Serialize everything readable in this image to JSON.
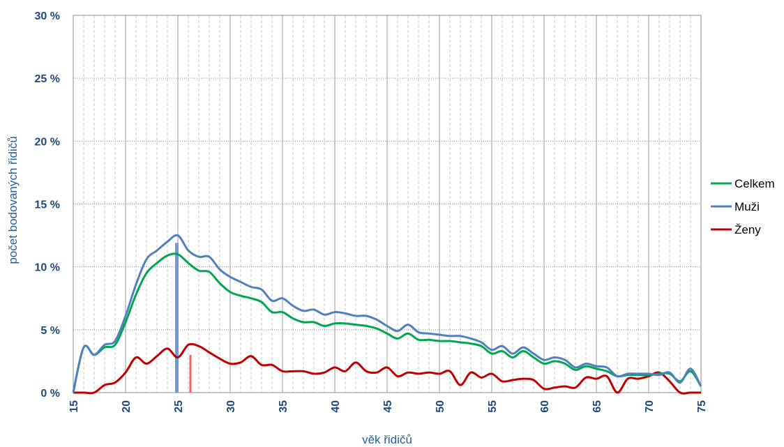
{
  "chart_data": {
    "type": "line",
    "xlabel": "věk řidičů",
    "ylabel": "počet bodovaných řidičů",
    "xlim": [
      15,
      75
    ],
    "ylim": [
      0,
      30
    ],
    "x_ticks": [
      "15",
      "20",
      "25",
      "30",
      "35",
      "40",
      "45",
      "50",
      "55",
      "60",
      "65",
      "70",
      "75"
    ],
    "y_ticks": [
      "0 %",
      "5 %",
      "10 %",
      "15 %",
      "20 %",
      "25 %",
      "30 %"
    ],
    "y_unit": "%",
    "grid": "vertical major solid, minor dashed; horizontal dotted",
    "legend_position": "right",
    "colors": {
      "Celkem": "#00a650",
      "Muži": "#4f81bd",
      "Ženy": "#c00000",
      "grid": "#a6a6a6",
      "axis_text": "#1f497d"
    },
    "x": [
      15,
      16,
      17,
      18,
      19,
      20,
      21,
      22,
      23,
      24,
      25,
      26,
      27,
      28,
      29,
      30,
      31,
      32,
      33,
      34,
      35,
      36,
      37,
      38,
      39,
      40,
      41,
      42,
      43,
      44,
      45,
      46,
      47,
      48,
      49,
      50,
      51,
      52,
      53,
      54,
      55,
      56,
      57,
      58,
      59,
      60,
      61,
      62,
      63,
      64,
      65,
      66,
      67,
      68,
      69,
      70,
      71,
      72,
      73,
      74,
      75
    ],
    "series": [
      {
        "name": "Celkem",
        "values": [
          0,
          3.6,
          3.0,
          3.6,
          3.8,
          5.6,
          7.8,
          9.5,
          10.3,
          10.9,
          11.0,
          10.3,
          9.7,
          9.6,
          8.7,
          8.0,
          7.7,
          7.5,
          7.2,
          6.4,
          6.4,
          5.9,
          5.6,
          5.6,
          5.3,
          5.5,
          5.5,
          5.4,
          5.3,
          5.1,
          4.7,
          4.3,
          4.7,
          4.2,
          4.2,
          4.1,
          4.1,
          4.0,
          3.9,
          3.7,
          3.1,
          3.3,
          2.8,
          3.3,
          2.8,
          2.3,
          2.5,
          2.3,
          1.8,
          2.1,
          1.9,
          1.7,
          1.3,
          1.4,
          1.4,
          1.4,
          1.5,
          1.5,
          0.9,
          1.7,
          0.5
        ]
      },
      {
        "name": "Muži",
        "values": [
          0,
          3.6,
          3.0,
          3.8,
          4.1,
          6.1,
          8.6,
          10.6,
          11.3,
          12.0,
          12.5,
          11.3,
          10.8,
          10.8,
          9.8,
          9.2,
          8.8,
          8.4,
          8.2,
          7.3,
          7.5,
          6.9,
          6.5,
          6.6,
          6.2,
          6.4,
          6.3,
          6.1,
          6.1,
          5.8,
          5.3,
          4.9,
          5.4,
          4.8,
          4.7,
          4.6,
          4.5,
          4.5,
          4.3,
          4.0,
          3.4,
          3.7,
          3.1,
          3.6,
          3.1,
          2.6,
          2.8,
          2.6,
          2.0,
          2.3,
          2.1,
          2.0,
          1.3,
          1.5,
          1.5,
          1.5,
          1.4,
          1.6,
          0.8,
          1.9,
          0.5
        ]
      },
      {
        "name": "Ženy",
        "values": [
          0,
          0,
          0,
          0.6,
          0.8,
          1.6,
          2.8,
          2.3,
          2.9,
          3.5,
          2.8,
          3.8,
          3.7,
          3.2,
          2.7,
          2.3,
          2.4,
          2.9,
          2.2,
          2.2,
          1.7,
          1.7,
          1.7,
          1.5,
          1.6,
          2.0,
          1.7,
          2.4,
          1.7,
          1.6,
          2.0,
          1.3,
          1.6,
          1.5,
          1.6,
          1.5,
          1.7,
          0.6,
          1.6,
          1.2,
          1.5,
          0.9,
          1.0,
          1.1,
          1.0,
          0.3,
          0.4,
          0.5,
          0.4,
          1.2,
          1.1,
          1.3,
          0,
          1.1,
          1.1,
          1.3,
          1.6,
          0.9,
          0,
          0,
          0
        ]
      }
    ],
    "markers": [
      {
        "name": "Muži",
        "x": 24.9,
        "y": 11.9
      },
      {
        "name": "Ženy",
        "x": 26.2,
        "y": 3.0
      }
    ]
  }
}
